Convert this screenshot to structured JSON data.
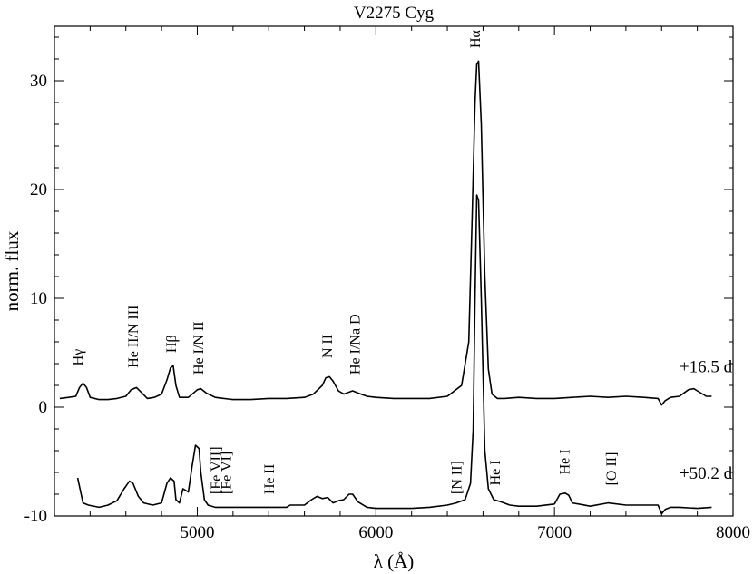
{
  "chart_data": {
    "type": "line",
    "title": "V2275 Cyg",
    "xlabel": "λ (Å)",
    "ylabel": "norm. flux",
    "xlim": [
      4200,
      8000
    ],
    "ylim": [
      -10,
      35
    ],
    "xticks": [
      5000,
      6000,
      7000,
      8000
    ],
    "yticks": [
      -10,
      0,
      10,
      20,
      30
    ],
    "grid": false,
    "series": [
      {
        "name": "+16.5 d",
        "color": "#000000",
        "x": [
          4230,
          4280,
          4320,
          4340,
          4360,
          4380,
          4400,
          4450,
          4500,
          4550,
          4600,
          4630,
          4660,
          4690,
          4720,
          4760,
          4800,
          4830,
          4850,
          4865,
          4880,
          4900,
          4950,
          5000,
          5020,
          5050,
          5100,
          5150,
          5200,
          5300,
          5400,
          5500,
          5600,
          5650,
          5700,
          5720,
          5740,
          5760,
          5790,
          5820,
          5870,
          5900,
          5950,
          6000,
          6100,
          6200,
          6300,
          6400,
          6480,
          6520,
          6540,
          6555,
          6565,
          6575,
          6590,
          6610,
          6630,
          6650,
          6680,
          6720,
          6800,
          6900,
          7000,
          7100,
          7200,
          7300,
          7400,
          7500,
          7580,
          7600,
          7620,
          7650,
          7700,
          7750,
          7780,
          7800,
          7850,
          7880
        ],
        "y": [
          0.8,
          0.9,
          1.0,
          1.8,
          2.2,
          1.8,
          0.9,
          0.7,
          0.7,
          0.8,
          1.0,
          1.6,
          1.8,
          1.3,
          0.8,
          0.9,
          1.2,
          2.5,
          3.6,
          3.8,
          2.0,
          0.9,
          0.9,
          1.6,
          1.7,
          1.3,
          0.9,
          0.8,
          0.7,
          0.7,
          0.8,
          0.8,
          0.9,
          1.2,
          2.0,
          2.7,
          2.8,
          2.4,
          1.5,
          1.2,
          1.5,
          1.3,
          1.0,
          0.9,
          0.8,
          0.8,
          0.8,
          1.0,
          2.0,
          6.0,
          18.0,
          28.0,
          31.5,
          31.8,
          26.0,
          12.0,
          3.5,
          1.2,
          0.8,
          0.8,
          0.9,
          0.8,
          0.8,
          0.9,
          1.0,
          0.9,
          1.0,
          0.9,
          0.8,
          0.2,
          0.6,
          0.9,
          1.0,
          1.6,
          1.7,
          1.5,
          1.0,
          1.0
        ]
      },
      {
        "name": "+50.2 d",
        "color": "#000000",
        "x": [
          4330,
          4360,
          4390,
          4450,
          4500,
          4550,
          4590,
          4620,
          4640,
          4670,
          4700,
          4750,
          4800,
          4830,
          4850,
          4870,
          4880,
          4900,
          4920,
          4950,
          4970,
          4990,
          5010,
          5020,
          5040,
          5060,
          5100,
          5150,
          5200,
          5300,
          5400,
          5500,
          5520,
          5600,
          5640,
          5670,
          5700,
          5730,
          5760,
          5790,
          5820,
          5850,
          5870,
          5900,
          5950,
          6000,
          6100,
          6200,
          6300,
          6400,
          6450,
          6500,
          6530,
          6545,
          6555,
          6565,
          6575,
          6590,
          6610,
          6630,
          6660,
          6700,
          6750,
          6800,
          6850,
          6900,
          7000,
          7030,
          7060,
          7080,
          7100,
          7200,
          7300,
          7400,
          7500,
          7580,
          7600,
          7620,
          7650,
          7700,
          7800,
          7880
        ],
        "y": [
          -6.5,
          -8.8,
          -9.0,
          -9.2,
          -9.0,
          -8.6,
          -7.5,
          -6.8,
          -7.0,
          -8.2,
          -8.8,
          -9.0,
          -8.8,
          -7.0,
          -6.5,
          -6.8,
          -8.5,
          -8.8,
          -7.5,
          -7.8,
          -5.5,
          -3.5,
          -3.8,
          -6.0,
          -8.5,
          -9.0,
          -9.2,
          -9.2,
          -9.2,
          -9.2,
          -9.2,
          -9.2,
          -9.0,
          -9.0,
          -8.5,
          -8.2,
          -8.4,
          -8.3,
          -8.8,
          -8.6,
          -8.5,
          -8.0,
          -8.0,
          -8.7,
          -9.2,
          -9.3,
          -9.3,
          -9.3,
          -9.2,
          -9.0,
          -8.8,
          -8.5,
          -7.0,
          -2.0,
          10.0,
          19.5,
          19.0,
          10.0,
          -4.0,
          -7.5,
          -8.5,
          -8.7,
          -9.0,
          -9.1,
          -9.1,
          -9.1,
          -8.9,
          -8.0,
          -7.9,
          -8.1,
          -8.8,
          -9.1,
          -8.8,
          -9.0,
          -9.0,
          -9.0,
          -9.8,
          -9.4,
          -9.2,
          -9.2,
          -9.3,
          -9.2
        ]
      }
    ],
    "series_labels": [
      {
        "text": "+16.5 d",
        "x": 7700,
        "y": 3.2
      },
      {
        "text": "+50.2 d",
        "x": 7700,
        "y": -6.6
      }
    ],
    "line_labels": [
      {
        "text": "Hγ",
        "x": 4340,
        "y": 3.8
      },
      {
        "text": "He II/N III",
        "x": 4650,
        "y": 3.6
      },
      {
        "text": "Hβ",
        "x": 4862,
        "y": 5.0
      },
      {
        "text": "He I/N II",
        "x": 5015,
        "y": 3.0
      },
      {
        "text": "N II",
        "x": 5735,
        "y": 4.5
      },
      {
        "text": "He I/Na D",
        "x": 5890,
        "y": 3.0
      },
      {
        "text": "Hα",
        "x": 6563,
        "y": 33.0
      },
      {
        "text": "[Fe VII]",
        "x": 5110,
        "y": -8.0
      },
      {
        "text": "[Fe VI]",
        "x": 5170,
        "y": -8.0
      },
      {
        "text": "He II",
        "x": 5410,
        "y": -8.0
      },
      {
        "text": "[N II]",
        "x": 6460,
        "y": -8.0
      },
      {
        "text": "He I",
        "x": 6675,
        "y": -7.2
      },
      {
        "text": "He I",
        "x": 7065,
        "y": -6.2
      },
      {
        "text": "[O II]",
        "x": 7325,
        "y": -7.2
      }
    ]
  }
}
